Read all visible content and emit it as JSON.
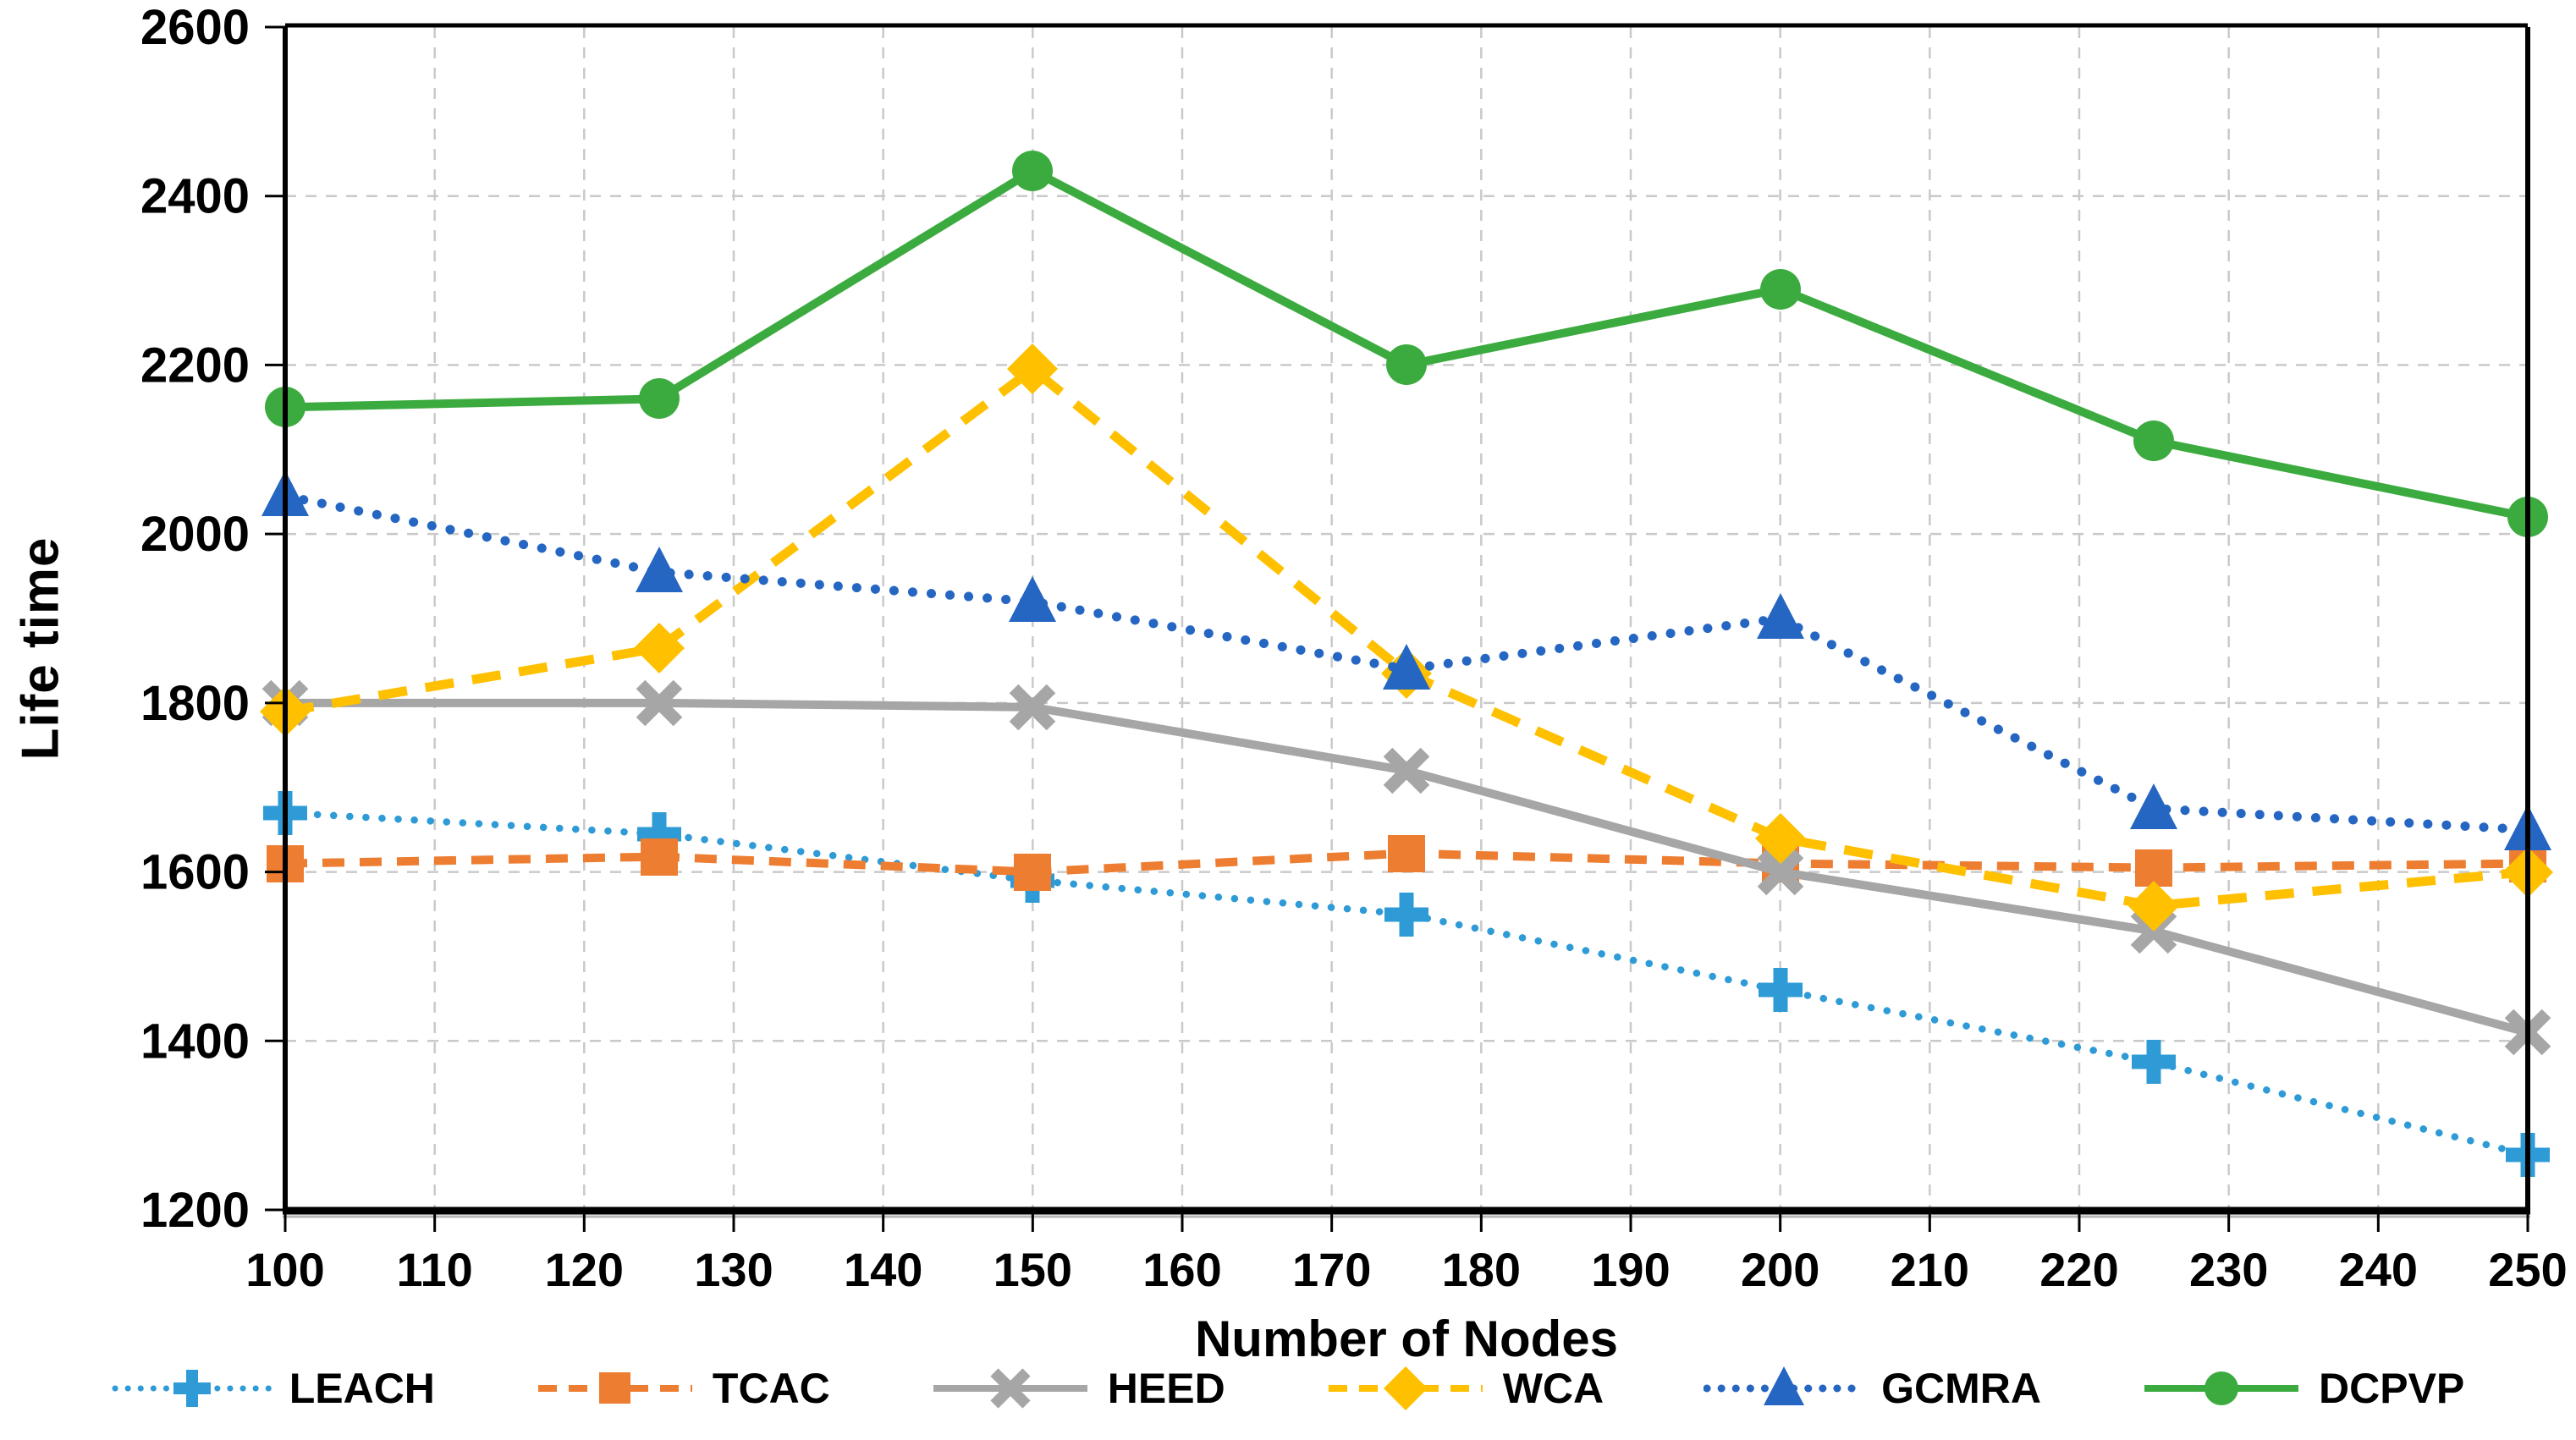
{
  "figure": {
    "background": "#FFFFFF",
    "grid_color": "#C9C9C9",
    "axis_color": "#000000"
  },
  "chart_data": {
    "type": "line",
    "title": "",
    "xlabel": "Number of Nodes",
    "ylabel": "Life time",
    "xlim": [
      100,
      250
    ],
    "ylim": [
      1200,
      2600
    ],
    "xticks": [
      100,
      110,
      120,
      130,
      140,
      150,
      160,
      170,
      180,
      190,
      200,
      210,
      220,
      230,
      240,
      250
    ],
    "yticks": [
      1200,
      1400,
      1600,
      1800,
      2000,
      2200,
      2400,
      2600
    ],
    "grid": true,
    "legend_position": "bottom",
    "x": [
      100,
      125,
      150,
      175,
      200,
      225,
      250
    ],
    "series": [
      {
        "name": "LEACH",
        "color": "#2E9BD6",
        "line": "dotted",
        "marker": "plus",
        "values": [
          1670,
          1645,
          1590,
          1550,
          1460,
          1375,
          1265
        ]
      },
      {
        "name": "TCAC",
        "color": "#ED7D31",
        "line": "dashed",
        "marker": "square",
        "values": [
          1610,
          1618,
          1600,
          1622,
          1610,
          1605,
          1610
        ]
      },
      {
        "name": "HEED",
        "color": "#A6A6A6",
        "line": "solid",
        "marker": "x",
        "values": [
          1800,
          1800,
          1795,
          1720,
          1600,
          1530,
          1410
        ]
      },
      {
        "name": "WCA",
        "color": "#FFC000",
        "line": "dashed",
        "marker": "diamond",
        "values": [
          1790,
          1865,
          2195,
          1835,
          1640,
          1560,
          1600
        ]
      },
      {
        "name": "GCMRA",
        "color": "#2566C2",
        "line": "dotted",
        "marker": "triangle",
        "values": [
          2045,
          1955,
          1920,
          1840,
          1900,
          1675,
          1650
        ]
      },
      {
        "name": "DCPVP",
        "color": "#3CAB3F",
        "line": "solid",
        "marker": "circle",
        "values": [
          2150,
          2160,
          2430,
          2200,
          2290,
          2110,
          2020
        ]
      }
    ]
  }
}
